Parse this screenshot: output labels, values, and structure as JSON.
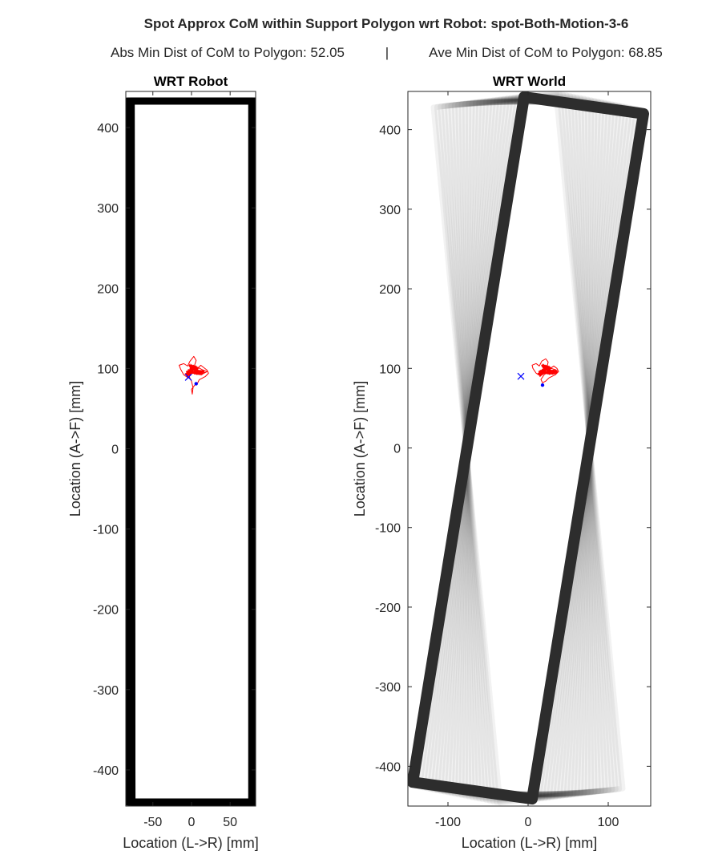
{
  "figure": {
    "title": "Spot Approx CoM within Support Polygon wrt Robot: spot-Both-Motion-3-6",
    "subtitle_left": "Abs Min Dist of CoM to Polygon: 52.05",
    "subtitle_sep": "|",
    "subtitle_right": "Ave Min Dist of CoM to Polygon: 68.85"
  },
  "chart_data": [
    {
      "type": "line",
      "title": "WRT Robot",
      "xlabel": "Location (L->R) [mm]",
      "ylabel": "Location (A->F) [mm]",
      "xlim": [
        -85,
        83
      ],
      "ylim": [
        -445,
        445
      ],
      "xticks": [
        -50,
        0,
        50
      ],
      "yticks": [
        -400,
        -300,
        -200,
        -100,
        0,
        100,
        200,
        300,
        400
      ],
      "grid": false,
      "series": [
        {
          "kind": "support-polygon",
          "color": "#000000",
          "width_mm": 9,
          "vertices": [
            [
              -78,
              433
            ],
            [
              78,
              433
            ],
            [
              78,
              -440
            ],
            [
              -77,
              -440
            ]
          ],
          "variation": [
            [
              -4,
              -4
            ],
            [
              -6,
              6
            ]
          ]
        },
        {
          "kind": "com-trace",
          "color": "#ff0000",
          "center": [
            3,
            97
          ],
          "points": [
            [
              -4,
              88
            ],
            [
              -10,
              92
            ],
            [
              -14,
              99
            ],
            [
              -16,
              104
            ],
            [
              -10,
              106
            ],
            [
              -5,
              103
            ],
            [
              -2,
              109
            ],
            [
              3,
              115
            ],
            [
              6,
              110
            ],
            [
              4,
              104
            ],
            [
              8,
              100
            ],
            [
              12,
              104
            ],
            [
              16,
              101
            ],
            [
              20,
              98
            ],
            [
              22,
              94
            ],
            [
              18,
              90
            ],
            [
              14,
              88
            ],
            [
              10,
              86
            ],
            [
              8,
              82
            ],
            [
              4,
              79
            ],
            [
              0,
              74
            ],
            [
              1,
              68
            ],
            [
              2,
              76
            ],
            [
              0,
              84
            ],
            [
              -3,
              90
            ],
            [
              0,
              95
            ],
            [
              6,
              98
            ],
            [
              12,
              97
            ],
            [
              17,
              95
            ],
            [
              13,
              92
            ],
            [
              6,
              93
            ],
            [
              2,
              96
            ],
            [
              -2,
              100
            ],
            [
              2,
              103
            ],
            [
              9,
              101
            ],
            [
              15,
              98
            ],
            [
              20,
              96
            ],
            [
              16,
              94
            ],
            [
              8,
              95
            ]
          ]
        },
        {
          "kind": "marker-x",
          "color": "#0000ff",
          "point": [
            -4,
            89
          ]
        },
        {
          "kind": "marker-dot",
          "color": "#0000ff",
          "point": [
            6,
            81
          ]
        }
      ]
    },
    {
      "type": "line",
      "title": "WRT World",
      "xlabel": "Location (L->R) [mm]",
      "ylabel": "Location (A->F) [mm]",
      "xlim": [
        -150,
        153
      ],
      "ylim": [
        -450,
        448
      ],
      "xticks": [
        -100,
        0,
        100
      ],
      "yticks": [
        -400,
        -300,
        -200,
        -100,
        0,
        100,
        200,
        300,
        400
      ],
      "grid": false,
      "series": [
        {
          "kind": "support-polygon-sweep",
          "color": "#000000",
          "width_mm": 14,
          "vertices_start": [
            [
              -13,
              441
            ],
            [
              140,
              425
            ],
            [
              13,
              -441
            ],
            [
              -140,
              -425
            ]
          ],
          "vertices_end": [
            [
              -118,
              428
            ],
            [
              35,
              446
            ],
            [
              118,
              -428
            ],
            [
              -35,
              -446
            ]
          ],
          "vertices_solid": [
            [
              -5,
              441
            ],
            [
              144,
              420
            ],
            [
              5,
              -441
            ],
            [
              -144,
              -420
            ]
          ]
        },
        {
          "kind": "com-trace",
          "color": "#ff0000",
          "center": [
            23,
            97
          ],
          "points": [
            [
              16,
              90
            ],
            [
              10,
              94
            ],
            [
              6,
              100
            ],
            [
              5,
              104
            ],
            [
              10,
              106
            ],
            [
              14,
              103
            ],
            [
              17,
              109
            ],
            [
              22,
              112
            ],
            [
              25,
              108
            ],
            [
              24,
              103
            ],
            [
              28,
              100
            ],
            [
              32,
              103
            ],
            [
              36,
              100
            ],
            [
              38,
              96
            ],
            [
              34,
              92
            ],
            [
              30,
              90
            ],
            [
              26,
              88
            ],
            [
              22,
              84
            ],
            [
              18,
              82
            ],
            [
              16,
              86
            ],
            [
              20,
              92
            ],
            [
              26,
              96
            ],
            [
              32,
              98
            ],
            [
              37,
              95
            ],
            [
              31,
              93
            ],
            [
              24,
              95
            ],
            [
              19,
              98
            ],
            [
              23,
              101
            ],
            [
              29,
              100
            ],
            [
              35,
              98
            ],
            [
              30,
              95
            ],
            [
              22,
              96
            ]
          ]
        },
        {
          "kind": "marker-x",
          "color": "#0000ff",
          "point": [
            -9,
            90
          ]
        },
        {
          "kind": "marker-dot",
          "color": "#0000ff",
          "point": [
            18,
            79
          ]
        }
      ]
    }
  ]
}
